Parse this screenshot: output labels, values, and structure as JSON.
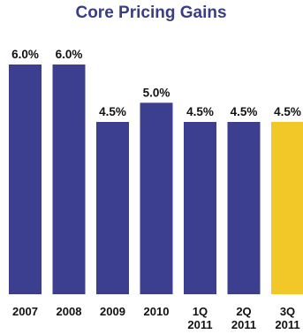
{
  "chart_data": {
    "type": "bar",
    "title": "Core Pricing Gains",
    "xlabel": "",
    "ylabel": "",
    "categories": [
      [
        "2007"
      ],
      [
        "2008"
      ],
      [
        "2009"
      ],
      [
        "2010"
      ],
      [
        "1Q",
        "2011"
      ],
      [
        "2Q",
        "2011"
      ],
      [
        "3Q",
        "2011"
      ]
    ],
    "values": [
      6.0,
      6.0,
      4.5,
      5.0,
      4.5,
      4.5,
      4.5
    ],
    "value_labels": [
      "6.0%",
      "6.0%",
      "4.5%",
      "5.0%",
      "4.5%",
      "4.5%",
      "4.5%"
    ],
    "bar_colors": [
      "#3c3f8f",
      "#3c3f8f",
      "#3c3f8f",
      "#3c3f8f",
      "#3c3f8f",
      "#3c3f8f",
      "#f2c828"
    ],
    "ylim": [
      0,
      6.0
    ],
    "grid": false,
    "legend": false
  }
}
